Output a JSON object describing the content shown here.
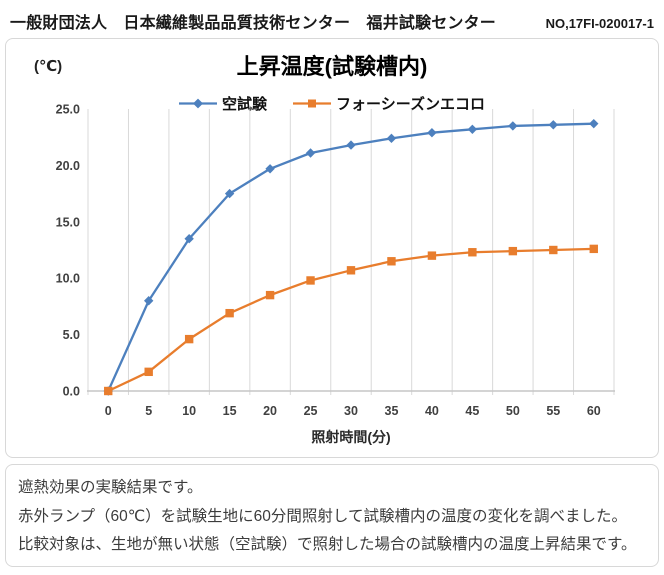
{
  "header": {
    "organization": "一般財団法人　日本繊維製品品質技術センター　福井試験センター",
    "report_no": "NO,17FI-020017-1"
  },
  "chart_data": {
    "type": "line",
    "title": "上昇温度(試験槽内)",
    "xlabel": "照射時間(分)",
    "ylabel": "(℃)",
    "categories": [
      0,
      5,
      10,
      15,
      20,
      25,
      30,
      35,
      40,
      45,
      50,
      55,
      60
    ],
    "series": [
      {
        "name": "空試験",
        "marker": "diamond",
        "color": "#4D80BE",
        "values": [
          0.0,
          8.0,
          13.5,
          17.5,
          19.7,
          21.1,
          21.8,
          22.4,
          22.9,
          23.2,
          23.5,
          23.6,
          23.7
        ]
      },
      {
        "name": "フォーシーズンエコロ",
        "marker": "square",
        "color": "#E87D2D",
        "values": [
          0.0,
          1.7,
          4.6,
          6.9,
          8.5,
          9.8,
          10.7,
          11.5,
          12.0,
          12.3,
          12.4,
          12.5,
          12.6
        ]
      }
    ],
    "ylim": [
      0,
      25
    ],
    "ytick_step": 5,
    "ytick_format": "one_decimal",
    "grid": "vertical-only",
    "legend_position": "top-center"
  },
  "description": {
    "lines": [
      "遮熱効果の実験結果です。",
      "赤外ランプ（60℃）を試験生地に60分間照射して試験槽内の温度の変化を調べました。",
      "比較対象は、生地が無い状態（空試験）で照射した場合の試験槽内の温度上昇結果です。"
    ]
  },
  "colors": {
    "series_blank_test": "#4D80BE",
    "series_four_seasons": "#E87D2D",
    "gridline": "#D9D9D9",
    "axis_line": "#C6C6C6",
    "tick_text": "#404040",
    "panel_border": "#D8D8D8"
  }
}
